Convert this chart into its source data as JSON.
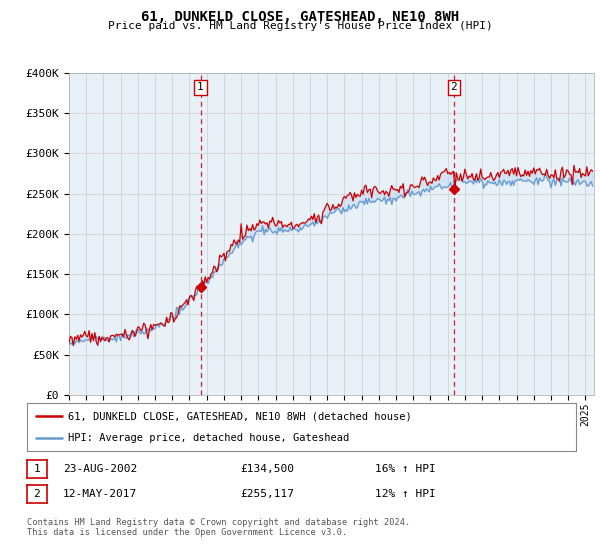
{
  "title": "61, DUNKELD CLOSE, GATESHEAD, NE10 8WH",
  "subtitle": "Price paid vs. HM Land Registry's House Price Index (HPI)",
  "ylabel_ticks": [
    "£0",
    "£50K",
    "£100K",
    "£150K",
    "£200K",
    "£250K",
    "£300K",
    "£350K",
    "£400K"
  ],
  "ylim": [
    0,
    400000
  ],
  "xlim_start": 1995.0,
  "xlim_end": 2025.5,
  "sale1_date": 2002.64,
  "sale1_price": 134500,
  "sale1_label": "1",
  "sale2_date": 2017.36,
  "sale2_price": 255117,
  "sale2_label": "2",
  "line_color_property": "#cc0000",
  "line_color_hpi": "#6699cc",
  "fill_color_hpi": "#ddeeff",
  "vline_color": "#cc0000",
  "grid_color": "#cccccc",
  "background_color": "#ffffff",
  "legend_label_property": "61, DUNKELD CLOSE, GATESHEAD, NE10 8WH (detached house)",
  "legend_label_hpi": "HPI: Average price, detached house, Gateshead",
  "table_row1": [
    "1",
    "23-AUG-2002",
    "£134,500",
    "16% ↑ HPI"
  ],
  "table_row2": [
    "2",
    "12-MAY-2017",
    "£255,117",
    "12% ↑ HPI"
  ],
  "footnote": "Contains HM Land Registry data © Crown copyright and database right 2024.\nThis data is licensed under the Open Government Licence v3.0."
}
